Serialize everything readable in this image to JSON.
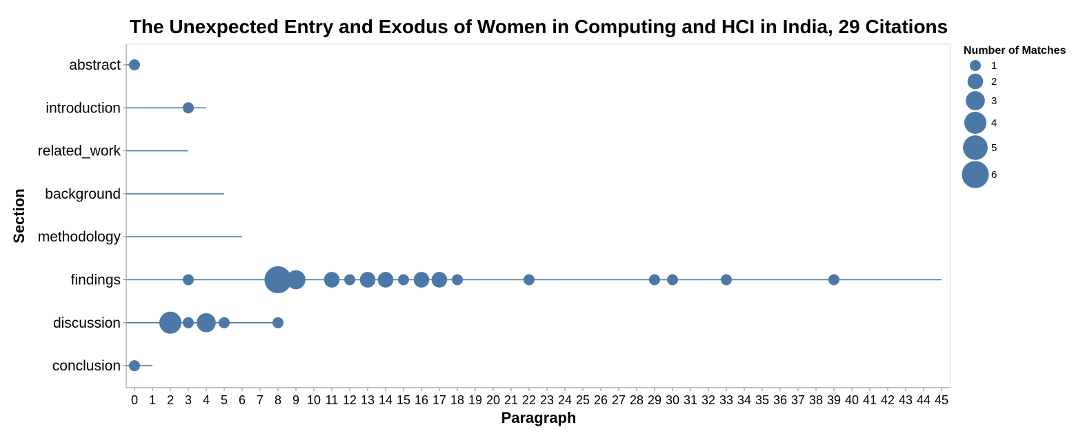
{
  "chart_data": {
    "type": "scatter",
    "title": "The Unexpected Entry and Exodus of Women in Computing and HCI in India, 29 Citations",
    "xlabel": "Paragraph",
    "ylabel": "Section",
    "xlim": [
      0,
      45
    ],
    "x_ticks": [
      0,
      1,
      2,
      3,
      4,
      5,
      6,
      7,
      8,
      9,
      10,
      11,
      12,
      13,
      14,
      15,
      16,
      17,
      18,
      19,
      20,
      21,
      22,
      23,
      24,
      25,
      26,
      27,
      28,
      29,
      30,
      31,
      32,
      33,
      34,
      35,
      36,
      37,
      38,
      39,
      40,
      41,
      42,
      43,
      44,
      45
    ],
    "sections": [
      "abstract",
      "introduction",
      "related_work",
      "background",
      "methodology",
      "findings",
      "discussion",
      "conclusion"
    ],
    "section_extent": {
      "abstract": 0,
      "introduction": 4,
      "related_work": 3,
      "background": 5,
      "methodology": 6,
      "findings": 45,
      "discussion": 8,
      "conclusion": 1
    },
    "points": [
      {
        "section": "abstract",
        "x": 0,
        "matches": 1
      },
      {
        "section": "introduction",
        "x": 3,
        "matches": 1
      },
      {
        "section": "findings",
        "x": 3,
        "matches": 1
      },
      {
        "section": "findings",
        "x": 8,
        "matches": 6
      },
      {
        "section": "findings",
        "x": 9,
        "matches": 3
      },
      {
        "section": "findings",
        "x": 11,
        "matches": 2
      },
      {
        "section": "findings",
        "x": 12,
        "matches": 1
      },
      {
        "section": "findings",
        "x": 13,
        "matches": 2
      },
      {
        "section": "findings",
        "x": 14,
        "matches": 2
      },
      {
        "section": "findings",
        "x": 15,
        "matches": 1
      },
      {
        "section": "findings",
        "x": 16,
        "matches": 2
      },
      {
        "section": "findings",
        "x": 17,
        "matches": 2
      },
      {
        "section": "findings",
        "x": 18,
        "matches": 1
      },
      {
        "section": "findings",
        "x": 22,
        "matches": 1
      },
      {
        "section": "findings",
        "x": 29,
        "matches": 1
      },
      {
        "section": "findings",
        "x": 30,
        "matches": 1
      },
      {
        "section": "findings",
        "x": 33,
        "matches": 1
      },
      {
        "section": "findings",
        "x": 39,
        "matches": 1
      },
      {
        "section": "discussion",
        "x": 2,
        "matches": 4
      },
      {
        "section": "discussion",
        "x": 3,
        "matches": 1
      },
      {
        "section": "discussion",
        "x": 4,
        "matches": 3
      },
      {
        "section": "discussion",
        "x": 5,
        "matches": 1
      },
      {
        "section": "discussion",
        "x": 8,
        "matches": 1
      },
      {
        "section": "conclusion",
        "x": 0,
        "matches": 1
      }
    ],
    "legend": {
      "title": "Number of Matches",
      "values": [
        1,
        2,
        3,
        4,
        5,
        6
      ],
      "position": "top-right"
    },
    "colors": {
      "point": "#4c78a8",
      "line": "#4c78a8"
    },
    "grid": false
  }
}
